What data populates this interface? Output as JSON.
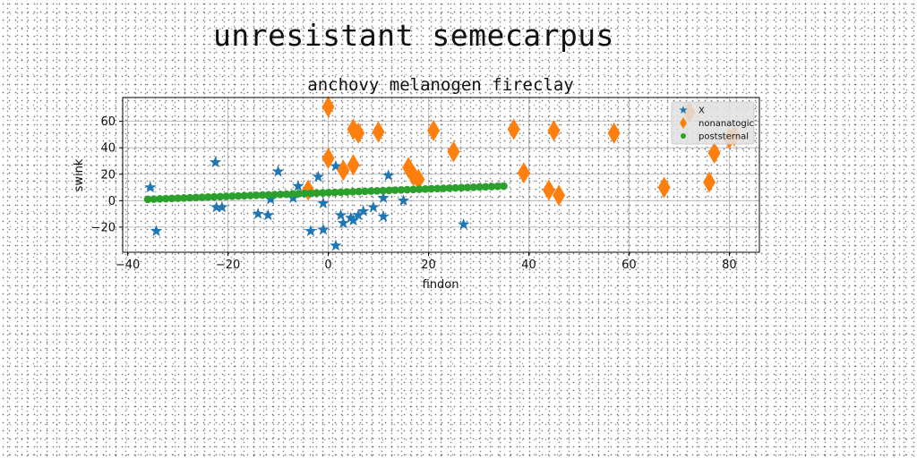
{
  "page_title": "unresistant semecarpus",
  "chart_data": {
    "type": "scatter",
    "title": "anchovy melanogen fireclay",
    "xlabel": "findon",
    "ylabel": "swink",
    "xlim": [
      -41,
      86
    ],
    "ylim": [
      -39,
      78
    ],
    "xticks": [
      -40,
      -20,
      0,
      20,
      40,
      60,
      80
    ],
    "yticks": [
      -20,
      0,
      20,
      40,
      60
    ],
    "grid": true,
    "legend_position": "top-right",
    "series": [
      {
        "name": "X",
        "marker": "star",
        "color": "#1f77b4",
        "points": [
          [
            -35.5,
            10
          ],
          [
            -34.3,
            -23
          ],
          [
            -22.5,
            29
          ],
          [
            -22.3,
            -5
          ],
          [
            -21.2,
            -5
          ],
          [
            -14,
            -10
          ],
          [
            -12,
            -11
          ],
          [
            -11.5,
            1
          ],
          [
            -10,
            22
          ],
          [
            -7,
            2
          ],
          [
            -6,
            11
          ],
          [
            -3.5,
            -23
          ],
          [
            -2,
            18
          ],
          [
            -1,
            -2
          ],
          [
            -1,
            -22
          ],
          [
            1.5,
            26
          ],
          [
            1.5,
            -34
          ],
          [
            2.5,
            -11
          ],
          [
            3,
            -17
          ],
          [
            4.5,
            -13
          ],
          [
            5,
            -15
          ],
          [
            6,
            -11
          ],
          [
            7,
            -8
          ],
          [
            9,
            -5
          ],
          [
            11,
            -12
          ],
          [
            11,
            2
          ],
          [
            12,
            19
          ],
          [
            15,
            0
          ],
          [
            27,
            -18
          ]
        ]
      },
      {
        "name": "nonanatogic",
        "marker": "thin_diamond",
        "color": "#ff7f0e",
        "points": [
          [
            0,
            71
          ],
          [
            0,
            32
          ],
          [
            -4,
            8
          ],
          [
            3,
            23
          ],
          [
            5,
            27
          ],
          [
            5,
            54
          ],
          [
            6,
            51
          ],
          [
            10,
            52
          ],
          [
            16,
            25
          ],
          [
            17,
            19
          ],
          [
            18,
            16
          ],
          [
            21,
            53
          ],
          [
            25,
            37
          ],
          [
            37,
            54
          ],
          [
            39,
            21
          ],
          [
            44,
            8
          ],
          [
            45,
            53
          ],
          [
            46,
            4
          ],
          [
            57,
            51
          ],
          [
            67,
            10
          ],
          [
            72,
            67
          ],
          [
            76,
            14
          ],
          [
            77,
            36
          ],
          [
            80,
            47
          ],
          [
            81,
            49
          ]
        ]
      },
      {
        "name": "poststernal",
        "marker": "circle",
        "color": "#2ca02c",
        "x_start": -36,
        "x_end": 35,
        "y_start": 1,
        "y_end": 11,
        "count": 60
      }
    ]
  },
  "colors": {
    "frame": "#000000",
    "grid": "#b0b0b0",
    "legend_bg": "#e0e0e0"
  }
}
